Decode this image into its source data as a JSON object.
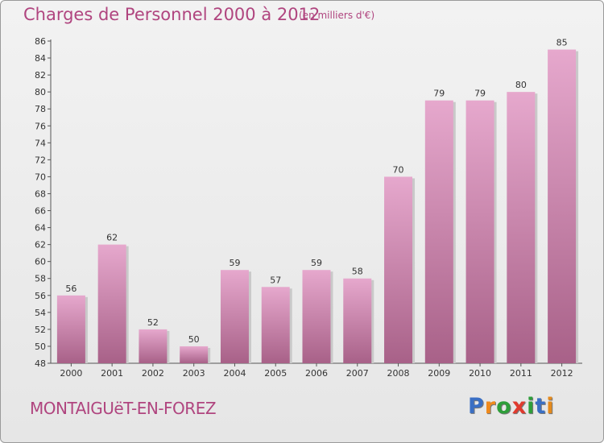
{
  "header": {
    "title": "Charges de Personnel 2000 à 2012",
    "subtitle": "(en milliers d'€)"
  },
  "footer": {
    "commune": "MONTAIGUëT-EN-FOREZ",
    "logo_letters": [
      "P",
      "r",
      "o",
      "x",
      "i",
      "t",
      "i"
    ],
    "logo_colors": [
      "#3a6fc4",
      "#f08a1c",
      "#2e9e3a",
      "#e03a2e",
      "#2e9e3a",
      "#3a6fc4",
      "#e58a1c"
    ]
  },
  "colors": {
    "accent": "#b0457f",
    "bar_light": "#e6a8cd",
    "bar_dark": "#a86188"
  },
  "chart_data": {
    "type": "bar",
    "categories": [
      "2000",
      "2001",
      "2002",
      "2003",
      "2004",
      "2005",
      "2006",
      "2007",
      "2008",
      "2009",
      "2010",
      "2011",
      "2012"
    ],
    "values": [
      56,
      62,
      52,
      50,
      59,
      57,
      59,
      58,
      70,
      79,
      79,
      80,
      85
    ],
    "ylim": [
      48,
      86
    ],
    "yticks": [
      48,
      50,
      52,
      54,
      56,
      58,
      60,
      62,
      64,
      66,
      68,
      70,
      72,
      74,
      76,
      78,
      80,
      82,
      84,
      86
    ],
    "grid": false,
    "legend": "none"
  }
}
